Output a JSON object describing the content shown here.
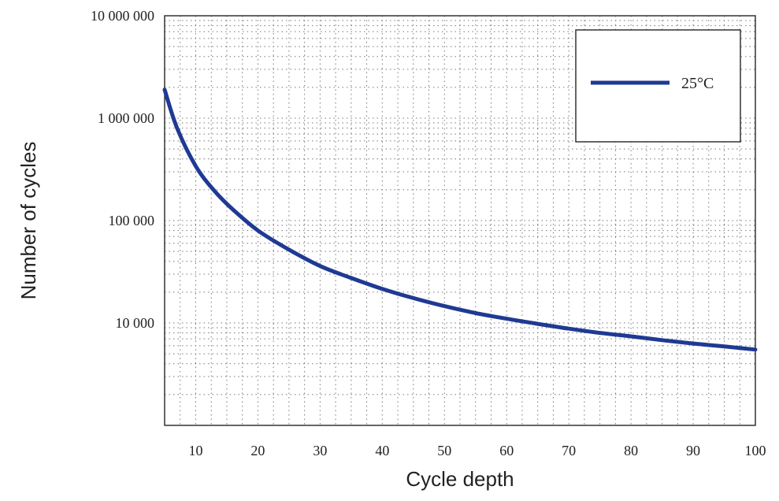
{
  "chart_data": {
    "type": "line",
    "xlabel": "Cycle depth",
    "ylabel": "Number of cycles",
    "xlim": [
      5,
      100
    ],
    "ylim": [
      1000,
      10000000
    ],
    "yscale": "log",
    "x_ticks": [
      10,
      20,
      30,
      40,
      50,
      60,
      70,
      80,
      90,
      100
    ],
    "x_tick_labels": [
      "10",
      "20",
      "30",
      "40",
      "50",
      "60",
      "70",
      "80",
      "90",
      "100"
    ],
    "y_ticks": [
      10000,
      100000,
      1000000,
      10000000
    ],
    "y_tick_labels": [
      "10 000",
      "100 000",
      "1 000 000",
      "10 000 000"
    ],
    "grid": true,
    "legend_position": "top-right",
    "series": [
      {
        "name": "25°C",
        "color": "#1f3a93",
        "x": [
          5,
          7,
          10,
          13,
          16,
          20,
          25,
          30,
          35,
          40,
          45,
          50,
          55,
          60,
          65,
          70,
          75,
          80,
          85,
          90,
          95,
          100
        ],
        "y": [
          1900000,
          800000,
          340000,
          195000,
          128000,
          80000,
          52000,
          36000,
          27500,
          21500,
          17500,
          14600,
          12500,
          11000,
          9800,
          8800,
          8000,
          7400,
          6800,
          6300,
          5900,
          5500
        ]
      }
    ]
  }
}
